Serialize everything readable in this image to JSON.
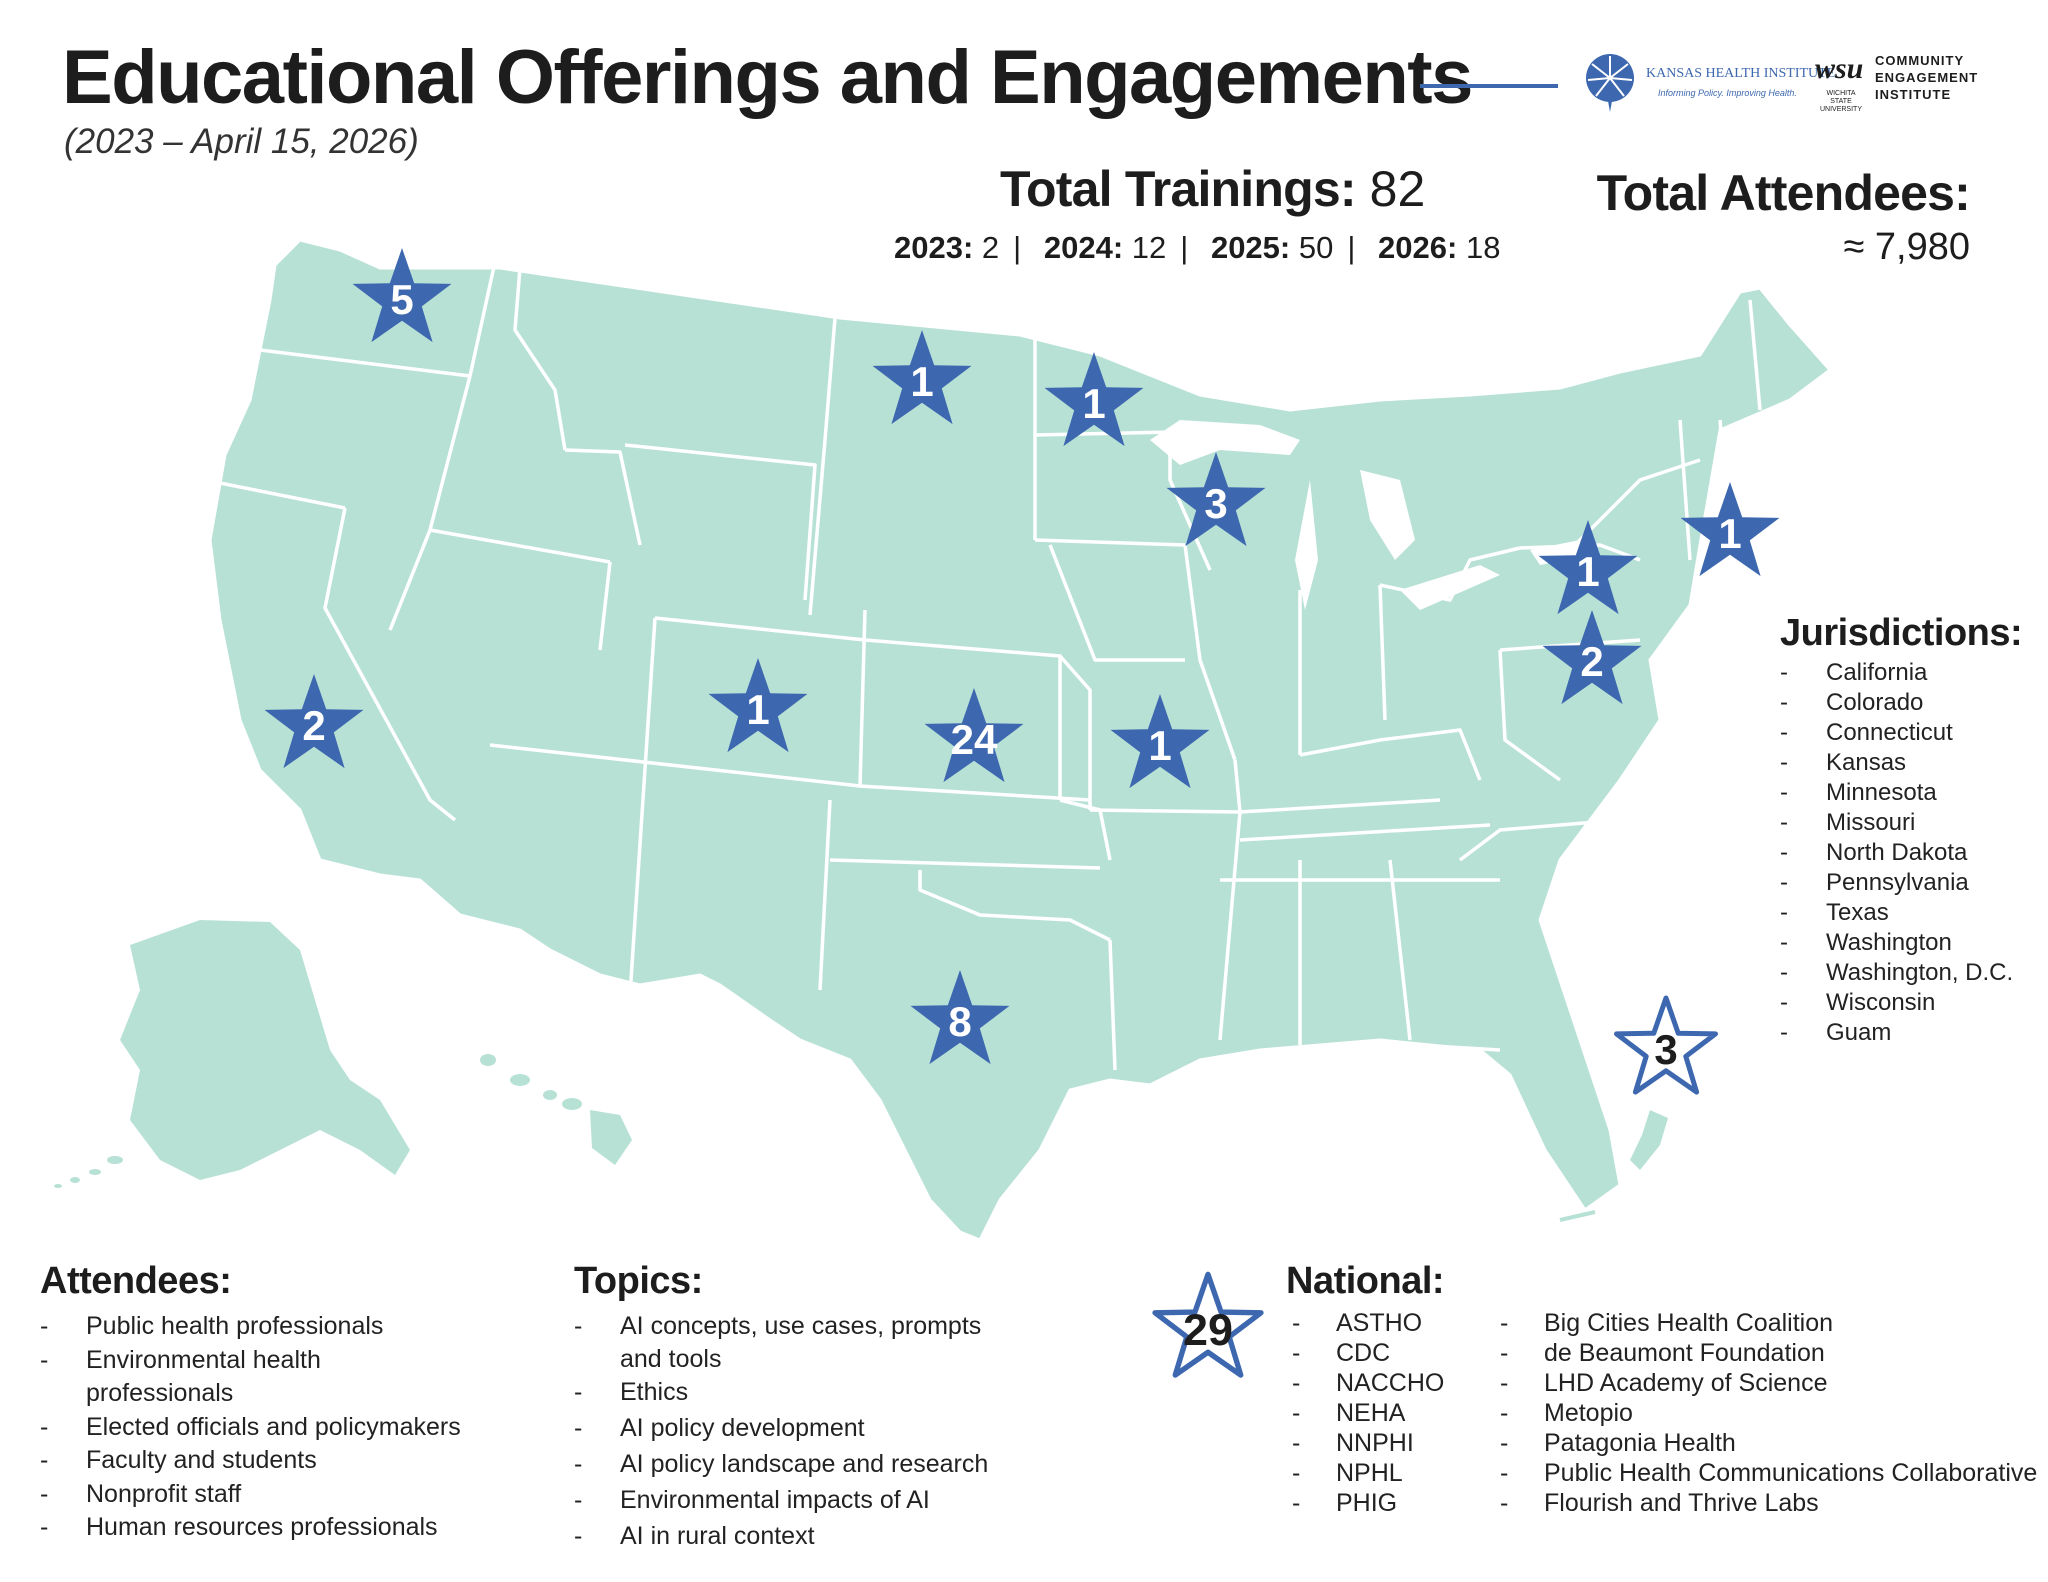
{
  "header": {
    "title": "Educational Offerings and Engagements",
    "subtitle": "(2023 – April 15, 2026)"
  },
  "logos": {
    "khi_name": "KANSAS HEALTH INSTITUTE",
    "khi_tagline": "Informing Policy. Improving Health.",
    "wsu_mark": "wsu",
    "wsu_sub": "WICHITA STATE UNIVERSITY",
    "cei_line1": "COMMUNITY",
    "cei_line2": "ENGAGEMENT",
    "cei_line3": "INSTITUTE"
  },
  "totals": {
    "trainings_label": "Total Trainings:",
    "trainings_value": "82",
    "attendees_label": "Total Attendees:",
    "attendees_value": "≈ 7,980",
    "by_year": [
      {
        "year": "2023:",
        "count": "2"
      },
      {
        "year": "2024:",
        "count": "12"
      },
      {
        "year": "2025:",
        "count": "50"
      },
      {
        "year": "2026:",
        "count": "18"
      }
    ]
  },
  "colors": {
    "land": "#b8e1d6",
    "borders": "#ffffff",
    "star_fill": "#3d68b0",
    "star_label": "#ffffff",
    "outline_star_label": "#1d1d1d"
  },
  "map_markers": [
    {
      "state": "Washington",
      "count": "5"
    },
    {
      "state": "North Dakota",
      "count": "1"
    },
    {
      "state": "Minnesota",
      "count": "1"
    },
    {
      "state": "Wisconsin",
      "count": "3"
    },
    {
      "state": "Pennsylvania",
      "count": "1"
    },
    {
      "state": "Connecticut",
      "count": "1"
    },
    {
      "state": "Washington, D.C.",
      "count": "2"
    },
    {
      "state": "California",
      "count": "2"
    },
    {
      "state": "Colorado",
      "count": "1"
    },
    {
      "state": "Kansas",
      "count": "24"
    },
    {
      "state": "Missouri",
      "count": "1"
    },
    {
      "state": "Texas",
      "count": "8"
    },
    {
      "state": "Guam",
      "count": "3",
      "style": "outline"
    }
  ],
  "jurisdictions": {
    "title": "Jurisdictions:",
    "items": [
      "California",
      "Colorado",
      "Connecticut",
      "Kansas",
      "Minnesota",
      "Missouri",
      "North Dakota",
      "Pennsylvania",
      "Texas",
      "Washington",
      "Washington, D.C.",
      "Wisconsin",
      "Guam"
    ]
  },
  "attendees": {
    "title": "Attendees:",
    "items": [
      "Public health professionals",
      "Environmental health",
      "professionals",
      "Elected officials and policymakers",
      "Faculty and students",
      "Nonprofit staff",
      "Human resources professionals"
    ]
  },
  "topics": {
    "title": "Topics:",
    "items": [
      "AI concepts, use cases, prompts",
      "and tools",
      "Ethics",
      "AI policy development",
      "AI policy landscape and research",
      "Environmental impacts of AI",
      "AI in rural context"
    ]
  },
  "national": {
    "title": "National:",
    "count": "29",
    "col1": [
      "ASTHO",
      "CDC",
      "NACCHO",
      "NEHA",
      "NNPHI",
      "NPHL",
      "PHIG"
    ],
    "col2": [
      "Big Cities Health Coalition",
      "de Beaumont Foundation",
      "LHD Academy of Science",
      "Metopio",
      "Patagonia Health",
      "Public Health Communications Collaborative",
      "Flourish and Thrive Labs"
    ]
  }
}
